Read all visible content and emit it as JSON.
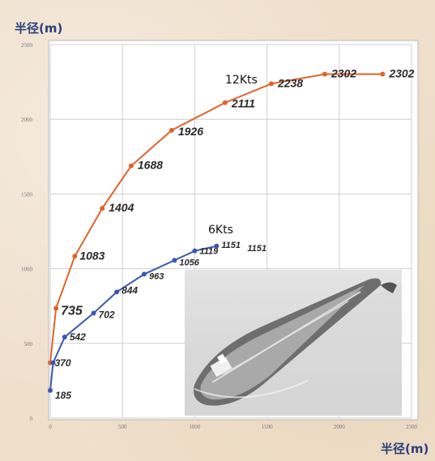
{
  "chart_data": {
    "type": "line",
    "title": "",
    "ylabel": "半径(m)",
    "xlabel": "半径(m)",
    "xlim": [
      0,
      2500
    ],
    "ylim": [
      0,
      2500
    ],
    "x_ticks": [
      "0",
      "500",
      "1000",
      "1500",
      "2000",
      "2500"
    ],
    "y_ticks": [
      "0",
      "500",
      "1000",
      "1500",
      "2000",
      "2500"
    ],
    "grid": true,
    "series": [
      {
        "name": "12Kts",
        "color": "#e0622a",
        "x": [
          0,
          40,
          170,
          360,
          560,
          840,
          1210,
          1530,
          1900,
          2300
        ],
        "values": [
          370,
          735,
          1083,
          1404,
          1688,
          1926,
          2111,
          2238,
          2302,
          2302
        ],
        "labels": [
          "",
          "735",
          "1083",
          "1404",
          "1688",
          "1926",
          "2111",
          "2238",
          "2302",
          "2302"
        ]
      },
      {
        "name": "6Kts",
        "color": "#3b58b0",
        "x": [
          0,
          20,
          100,
          300,
          460,
          650,
          860,
          1000,
          1151
        ],
        "values": [
          185,
          370,
          542,
          702,
          844,
          963,
          1056,
          1119,
          1151
        ],
        "labels": [
          "185",
          "370",
          "542",
          "702",
          "844",
          "963",
          "1056",
          "1119",
          "1151"
        ],
        "end_label": "1151"
      }
    ]
  },
  "photo_icon": "oil-tanker-photo"
}
